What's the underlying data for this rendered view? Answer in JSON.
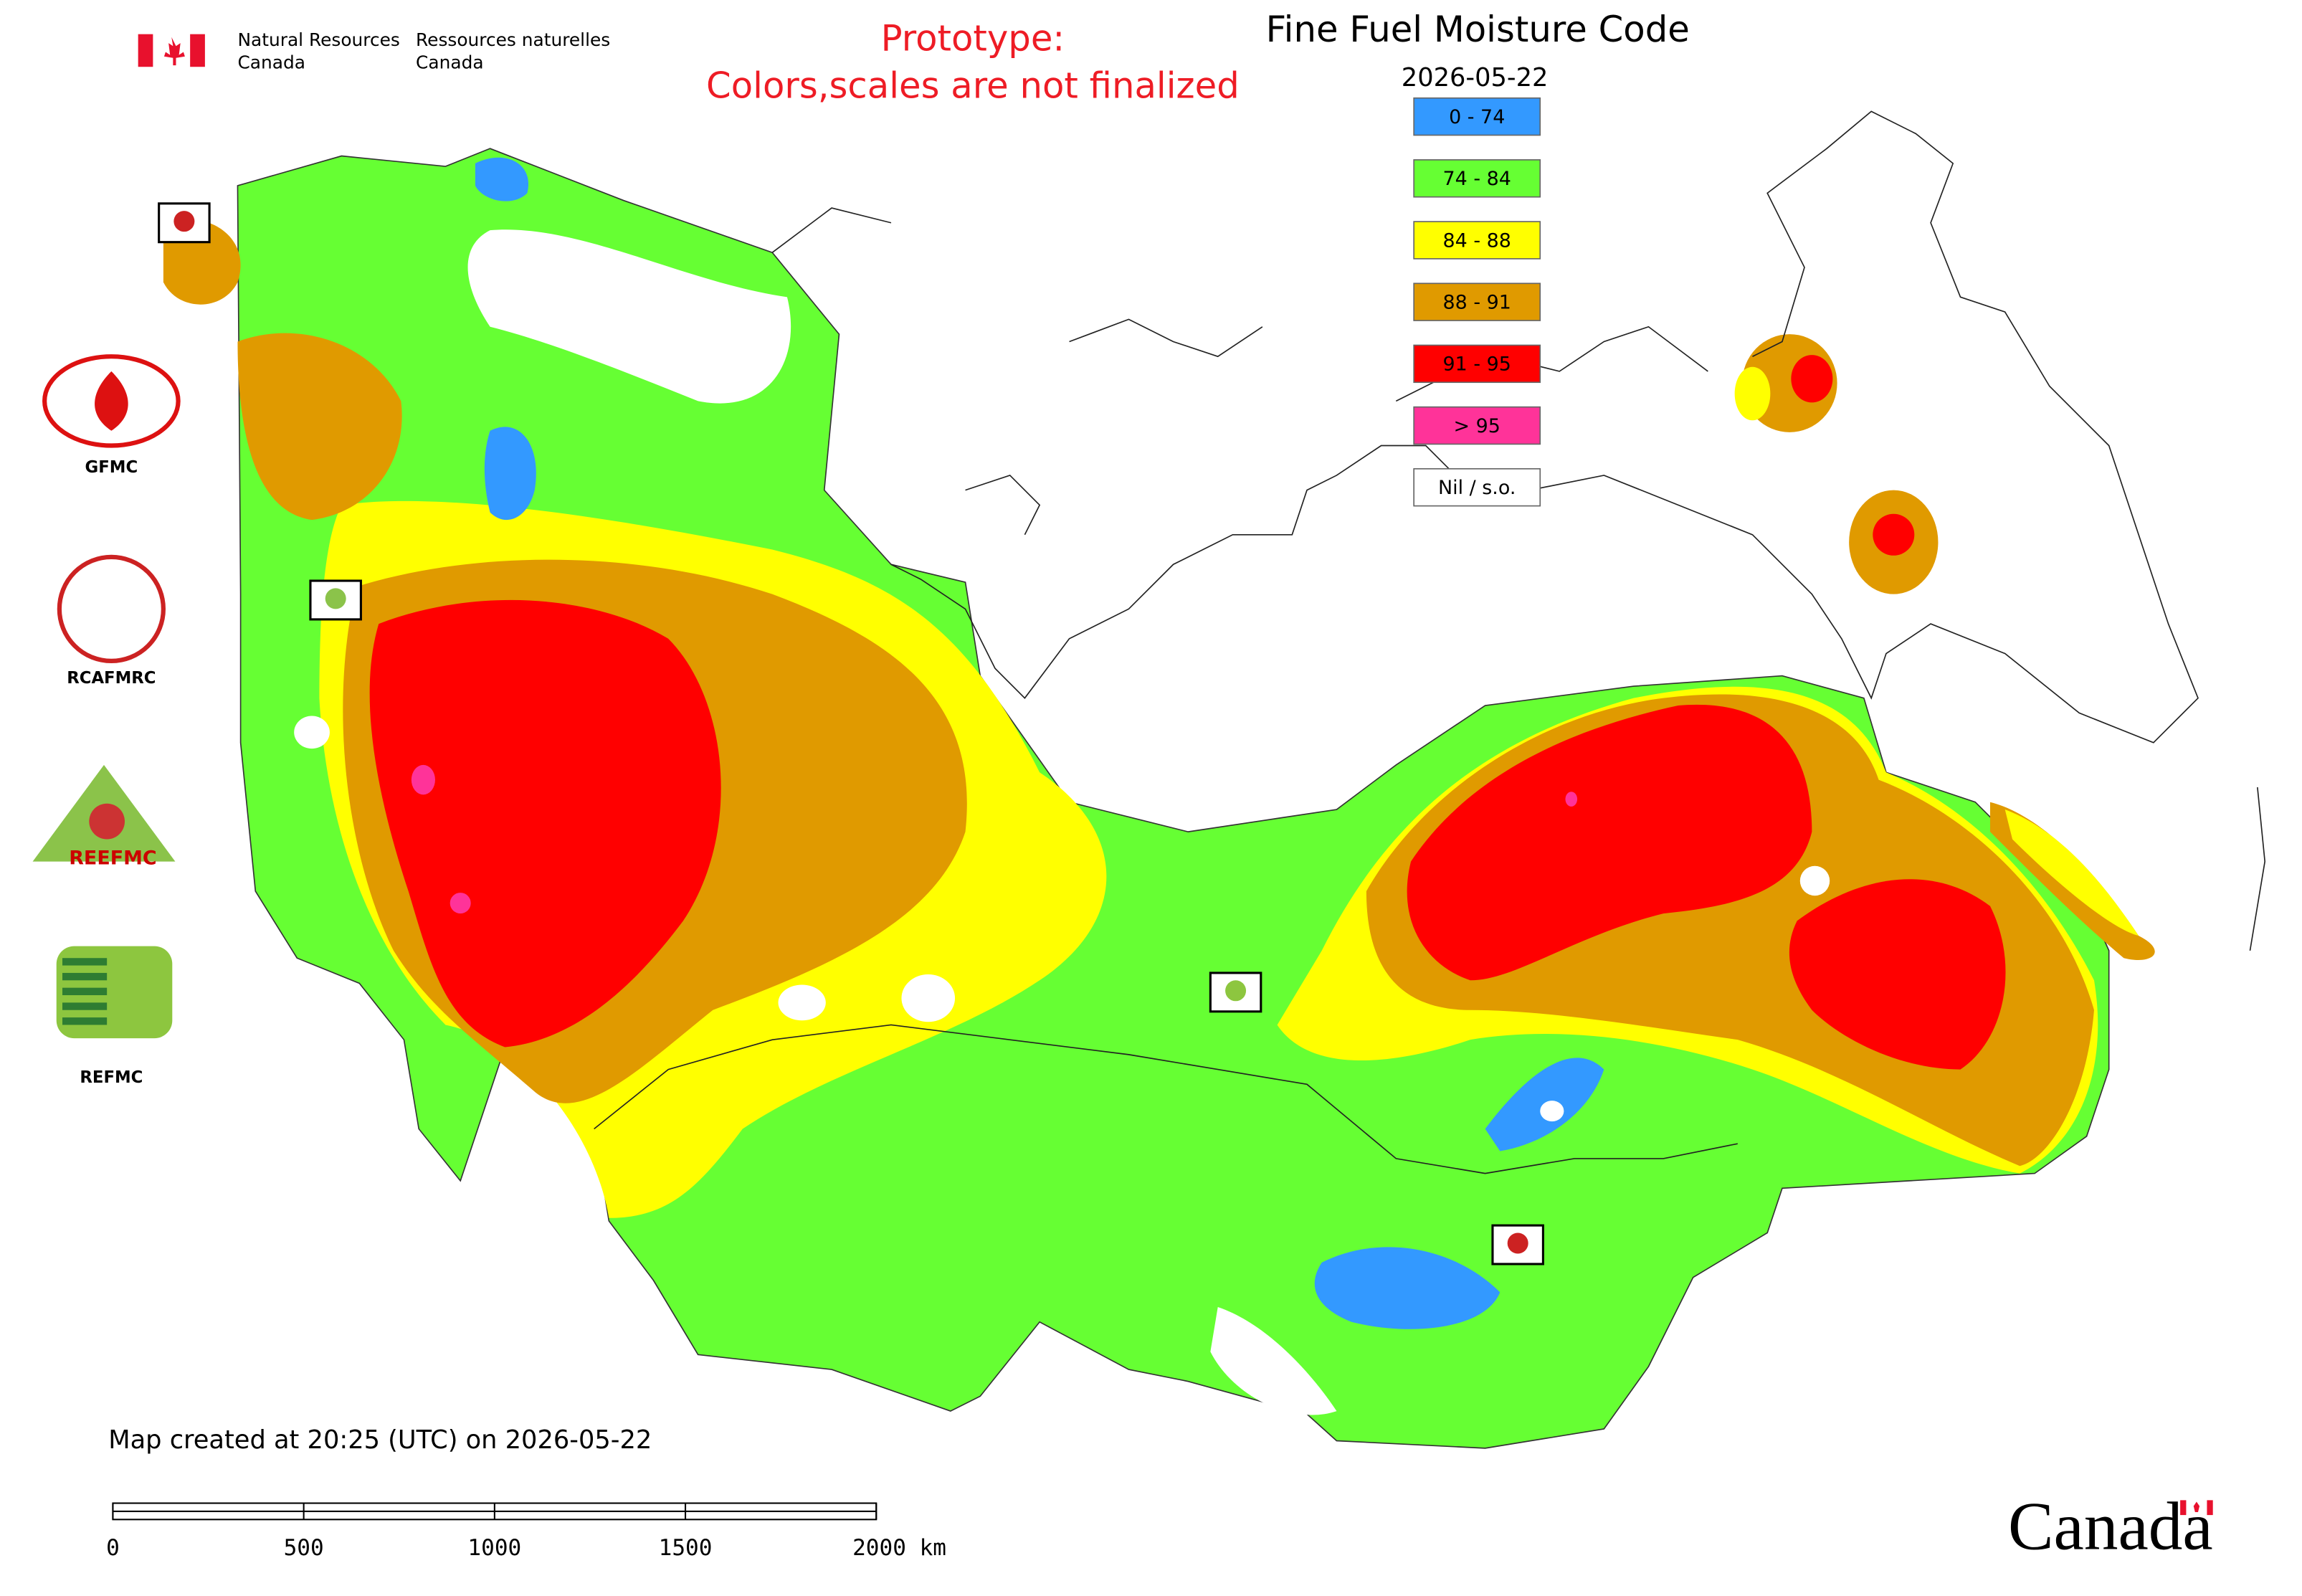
{
  "header": {
    "department_en": [
      "Natural Resources",
      "Canada"
    ],
    "department_fr": [
      "Ressources naturelles",
      "Canada"
    ],
    "notice": [
      "Prototype:",
      "Colors,scales are not finalized"
    ],
    "title": "Fine Fuel Moisture Code",
    "date": "2026-05-22"
  },
  "legend": [
    {
      "label": "0 - 74",
      "color": "#3399ff"
    },
    {
      "label": "74 - 84",
      "color": "#66ff33"
    },
    {
      "label": "84 - 88",
      "color": "#ffff00"
    },
    {
      "label": "88 - 91",
      "color": "#e09a00"
    },
    {
      "label": "91 - 95",
      "color": "#ff0000"
    },
    {
      "label": "> 95",
      "color": "#ff3399"
    },
    {
      "label": "Nil / s.o.",
      "color": "#ffffff"
    }
  ],
  "logos": [
    "GFMC",
    "RCAFMRC",
    "REEFMC",
    "REFMC"
  ],
  "footer": "Map created at 20:25 (UTC) on 2026-05-22",
  "scale_bar": [
    "0",
    "500",
    "1000",
    "1500",
    "2000 km"
  ],
  "wordmark": "Canada"
}
